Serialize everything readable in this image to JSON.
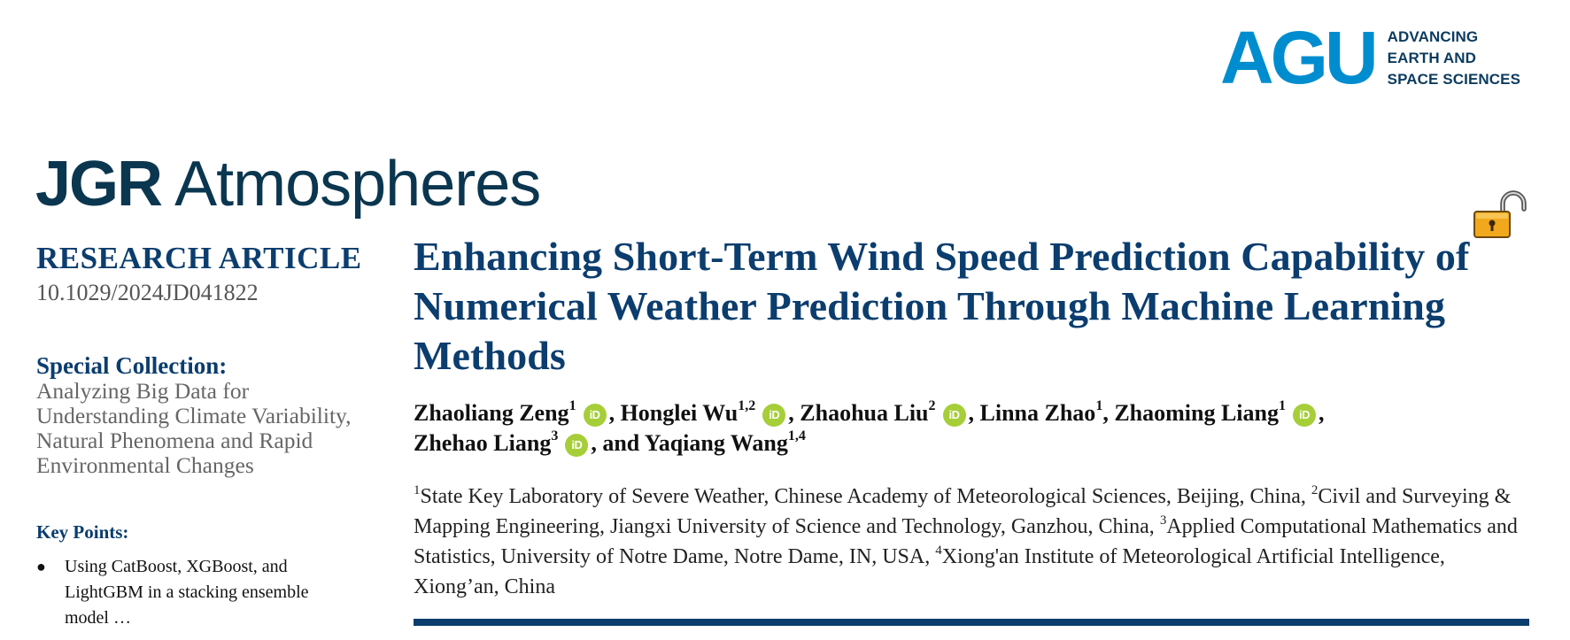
{
  "publisher": {
    "logo_text": "AGU",
    "tagline": [
      "ADVANCING",
      "EARTH AND",
      "SPACE SCIENCES"
    ]
  },
  "journal": {
    "title_part1": "JGR",
    "title_part2": "Atmospheres"
  },
  "open_access_icon": "open-lock-icon",
  "sidebar": {
    "article_type": "RESEARCH ARTICLE",
    "doi": "10.1029/2024JD041822",
    "special_collection_label": "Special Collection:",
    "special_collection_text": "Analyzing Big Data for Understanding Climate Variability, Natural Phenomena and Rapid Environmental Changes",
    "key_points_label": "Key Points:",
    "key_points": [
      "Using CatBoost, XGBoost, and LightGBM in a stacking ensemble model …"
    ]
  },
  "article": {
    "title": "Enhancing Short-Term Wind Speed Prediction Capability of Numerical Weather Prediction Through Machine Learning Methods",
    "orcid_icon_text": "iD",
    "authors": [
      {
        "name": "Zhaoliang Zeng",
        "sup": "1",
        "orcid": true,
        "sep": ", "
      },
      {
        "name": "Honglei Wu",
        "sup": "1,2",
        "orcid": true,
        "sep": ", "
      },
      {
        "name": "Zhaohua Liu",
        "sup": "2",
        "orcid": true,
        "sep": ", "
      },
      {
        "name": "Linna Zhao",
        "sup": "1",
        "orcid": false,
        "sep": ", "
      },
      {
        "name": "Zhaoming Liang",
        "sup": "1",
        "orcid": true,
        "sep": ", "
      },
      {
        "name": "Zhehao Liang",
        "sup": "3",
        "orcid": true,
        "sep": ", and "
      },
      {
        "name": "Yaqiang Wang",
        "sup": "1,4",
        "orcid": false,
        "sep": ""
      }
    ],
    "affiliations": [
      {
        "num": "1",
        "text": "State Key Laboratory of Severe Weather, Chinese Academy of Meteorological Sciences, Beijing, China, "
      },
      {
        "num": "2",
        "text": "Civil and Surveying & Mapping Engineering, Jiangxi University of Science and Technology, Ganzhou, China, "
      },
      {
        "num": "3",
        "text": "Applied Computational Mathematics and Statistics, University of Notre Dame, Notre Dame, IN, USA, "
      },
      {
        "num": "4",
        "text": "Xiong'an Institute of Meteorological Artificial Intelligence, Xiong’an, China"
      }
    ]
  }
}
